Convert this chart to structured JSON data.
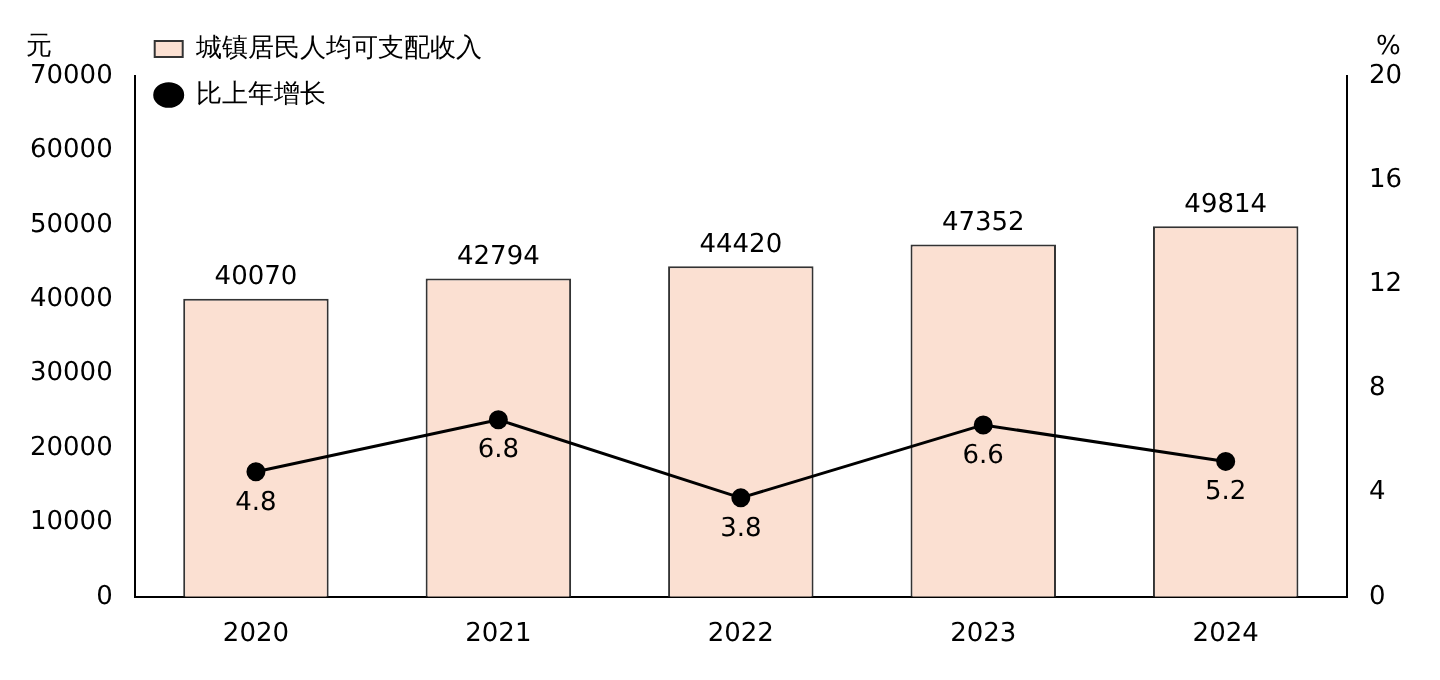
{
  "chart_data": {
    "type": "bar",
    "categories": [
      "2020",
      "2021",
      "2022",
      "2023",
      "2024"
    ],
    "ylabel": "元",
    "y2label": "%",
    "series": [
      {
        "name": "城镇居民人均可支配收入",
        "color": "#fbe0d2",
        "values": [
          40070,
          42794,
          44420,
          47352,
          49814
        ]
      },
      {
        "name": "比上年增长",
        "type": "line",
        "axis": "y2",
        "color": "#000000",
        "values": [
          4.8,
          6.8,
          3.8,
          6.6,
          5.2
        ]
      }
    ],
    "ylim": [
      0,
      70000
    ],
    "yticks": [
      0,
      10000,
      20000,
      30000,
      40000,
      50000,
      60000,
      70000
    ],
    "y2lim": [
      0,
      20
    ],
    "y2ticks": [
      0,
      4,
      8,
      12,
      16,
      20
    ],
    "grid": false,
    "legend": "top left",
    "marker": "circle",
    "line_style": "solid",
    "data_labels": true
  }
}
